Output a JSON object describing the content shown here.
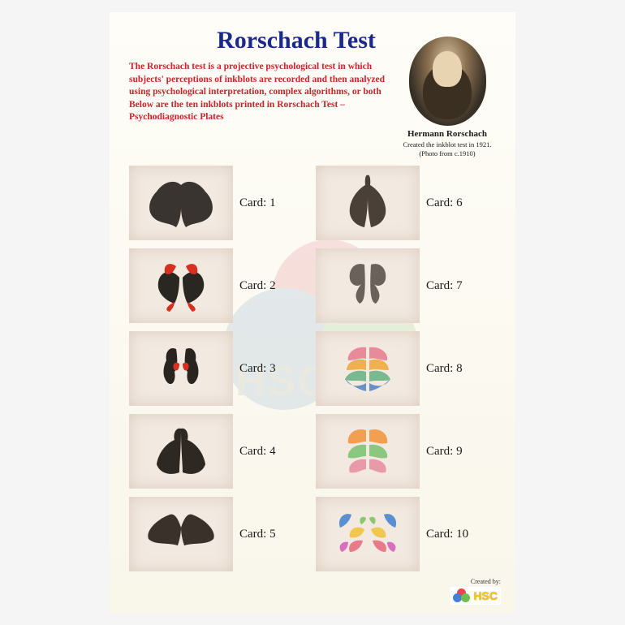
{
  "title": "Rorschach Test",
  "intro": "The Rorschach test is a projective psychological test in which subjects' perceptions of inkblots are recorded and then analyzed using psychological interpretation, complex algorithms, or both Below are the ten inkblots printed in Rorschach Test – Psychodiagnostic Plates",
  "portrait": {
    "name": "Hermann Rorschach",
    "caption": "Created the inkblot test in 1921. (Photo from c.1910)"
  },
  "cards": [
    {
      "label": "Card: 1",
      "palette": [
        "#3a3430",
        "#5a4a3c"
      ],
      "accent": null,
      "shape": "bat"
    },
    {
      "label": "Card: 6",
      "palette": [
        "#4a4038",
        "#6a5848"
      ],
      "accent": null,
      "shape": "pelt"
    },
    {
      "label": "Card: 2",
      "palette": [
        "#2a2622",
        "#3c3228"
      ],
      "accent": "#d83020",
      "shape": "twin"
    },
    {
      "label": "Card: 7",
      "palette": [
        "#6a625a",
        "#8a8078"
      ],
      "accent": null,
      "shape": "heads"
    },
    {
      "label": "Card: 3",
      "palette": [
        "#2a2420",
        "#3a3028"
      ],
      "accent": "#d83020",
      "shape": "figures"
    },
    {
      "label": "Card: 8",
      "palette": [
        "#e88a9a",
        "#f0b050",
        "#7ab890",
        "#6a90c8"
      ],
      "accent": null,
      "shape": "color1"
    },
    {
      "label": "Card: 4",
      "palette": [
        "#2e2822",
        "#4a3e30"
      ],
      "accent": null,
      "shape": "giant"
    },
    {
      "label": "Card: 9",
      "palette": [
        "#f0a050",
        "#8ac880",
        "#e89aa8"
      ],
      "accent": null,
      "shape": "color2"
    },
    {
      "label": "Card: 5",
      "palette": [
        "#3a322a",
        "#5a4c3c"
      ],
      "accent": null,
      "shape": "moth"
    },
    {
      "label": "Card: 10",
      "palette": [
        "#5a90d0",
        "#f0c850",
        "#e87a8a",
        "#8ac870",
        "#d870c0"
      ],
      "accent": null,
      "shape": "crab"
    }
  ],
  "footer": {
    "created_by": "Created by:",
    "brand": "HSC"
  },
  "colors": {
    "title": "#1a2a8a",
    "intro": "#c8252a",
    "plate_bg": "#f2e9e0",
    "poster_bg": "#fbf9ef"
  },
  "watermark": {
    "text": "HSC"
  }
}
